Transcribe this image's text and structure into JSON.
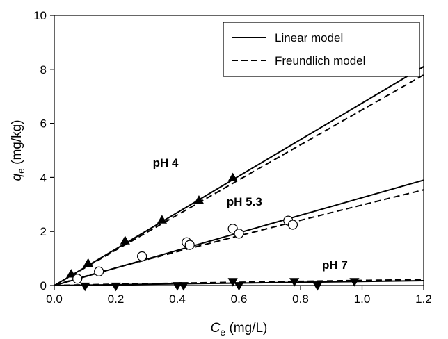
{
  "chart_data": {
    "type": "scatter",
    "title": "",
    "xlabel": {
      "main": "C",
      "sub": "e",
      "unit": " (mg/L)"
    },
    "ylabel": {
      "main": "q",
      "sub": "e",
      "unit": " (mg/kg)"
    },
    "xlim": [
      0.0,
      1.2
    ],
    "ylim": [
      0,
      10
    ],
    "xticks": [
      "0.0",
      "0.2",
      "0.4",
      "0.6",
      "0.8",
      "1.0",
      "1.2"
    ],
    "yticks": [
      "0",
      "2",
      "4",
      "6",
      "8",
      "10"
    ],
    "grid": false,
    "legend": {
      "position": "top-right",
      "entries": [
        {
          "label": "Linear model",
          "style": "solid"
        },
        {
          "label": "Freundlich model",
          "style": "dashed"
        }
      ]
    },
    "series": [
      {
        "label": "pH 4",
        "marker": "triangle-up",
        "points": [
          [
            0.055,
            0.42
          ],
          [
            0.11,
            0.82
          ],
          [
            0.23,
            1.65
          ],
          [
            0.35,
            2.42
          ],
          [
            0.47,
            3.15
          ],
          [
            0.58,
            3.98
          ]
        ],
        "linear_slope": 6.75,
        "freundlich": {
          "k": 6.5,
          "n": 0.995
        }
      },
      {
        "label": "pH 5.3",
        "marker": "circle-open",
        "points": [
          [
            0.075,
            0.25
          ],
          [
            0.145,
            0.52
          ],
          [
            0.285,
            1.08
          ],
          [
            0.43,
            1.6
          ],
          [
            0.44,
            1.5
          ],
          [
            0.58,
            2.1
          ],
          [
            0.6,
            1.92
          ],
          [
            0.76,
            2.4
          ],
          [
            0.775,
            2.25
          ]
        ],
        "linear_slope": 3.25,
        "freundlich": {
          "k": 2.98,
          "n": 0.945
        }
      },
      {
        "label": "pH 7",
        "marker": "triangle-down",
        "points": [
          [
            0.1,
            -0.02
          ],
          [
            0.2,
            -0.02
          ],
          [
            0.4,
            0.0
          ],
          [
            0.42,
            0.0
          ],
          [
            0.58,
            0.15
          ],
          [
            0.6,
            0.0
          ],
          [
            0.78,
            0.15
          ],
          [
            0.855,
            0.0
          ],
          [
            0.975,
            0.15
          ]
        ],
        "linear_slope": 0.15,
        "freundlich": {
          "k": 0.19,
          "n": 0.85
        }
      }
    ],
    "annotations": [
      {
        "text": "pH 4",
        "x": 0.32,
        "y": 4.4
      },
      {
        "text": "pH 5.3",
        "x": 0.56,
        "y": 2.95
      },
      {
        "text": "pH 7",
        "x": 0.87,
        "y": 0.62
      }
    ]
  }
}
